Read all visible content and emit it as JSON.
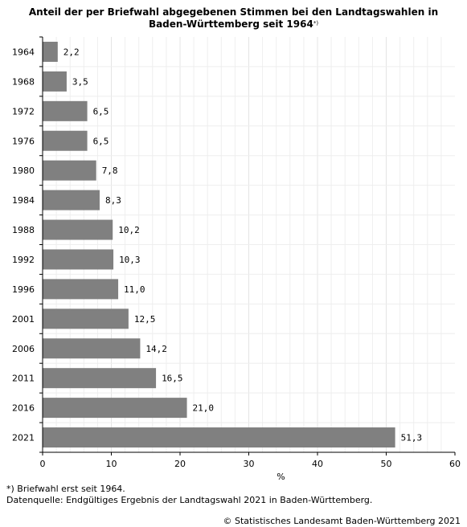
{
  "title": {
    "line1": "Anteil der per Briefwahl abgegebenen Stimmen bei den Landtagswahlen in",
    "line2": "Baden-Württemberg seit 1964",
    "marker": "*)"
  },
  "footnotes": {
    "note": "*) Briefwahl erst seit 1964.",
    "source": "Datenquelle: Endgültiges Ergebnis der Landtagswahl 2021 in Baden-Württemberg."
  },
  "copyright": "© Statistisches Landesamt Baden-Württemberg 2021",
  "chart_data": {
    "type": "bar",
    "orientation": "horizontal",
    "categories": [
      "1964",
      "1968",
      "1972",
      "1976",
      "1980",
      "1984",
      "1988",
      "1992",
      "1996",
      "2001",
      "2006",
      "2011",
      "2016",
      "2021"
    ],
    "values": [
      2.2,
      3.5,
      6.5,
      6.5,
      7.8,
      8.3,
      10.2,
      10.3,
      11.0,
      12.5,
      14.2,
      16.5,
      21.0,
      51.3
    ],
    "value_labels": [
      "2,2",
      "3,5",
      "6,5",
      "6,5",
      "7,8",
      "8,3",
      "10,2",
      "10,3",
      "11,0",
      "12,5",
      "14,2",
      "16,5",
      "21,0",
      "51,3"
    ],
    "xlabel": "%",
    "xlim": [
      0,
      60
    ],
    "xticks": [
      0,
      10,
      20,
      30,
      40,
      50,
      60
    ],
    "grid": true,
    "bar_color": "#808080"
  }
}
